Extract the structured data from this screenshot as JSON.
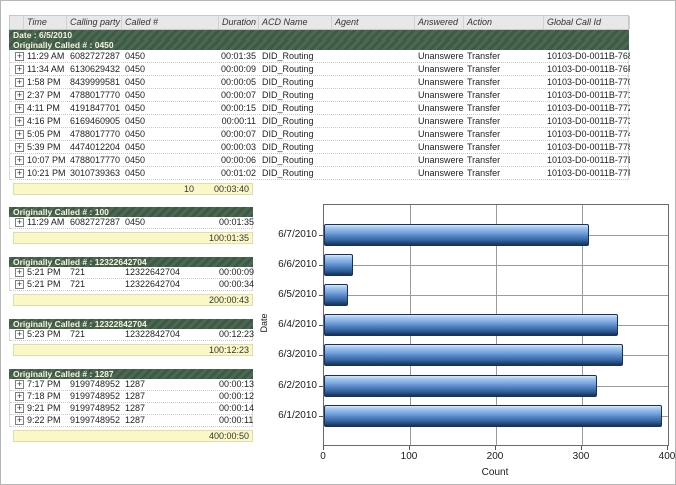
{
  "colors": {
    "group_band_green": "#44614C",
    "summary_yellow": "#FBF8C8",
    "bar_blue_light": "#A9C9EF",
    "bar_blue_dark": "#16325A",
    "header_gray": "#E8E8E8"
  },
  "table": {
    "headers": [
      "",
      "Time",
      "Calling party #",
      "Called #",
      "Duration",
      "ACD Name",
      "Agent",
      "Answered",
      "Action",
      "Global Call Id"
    ],
    "date_band": "Date : 6/5/2010",
    "expand_icon_glyph": "+",
    "groups": [
      {
        "title": "Originally Called # : 0450",
        "rows": [
          {
            "time": "11:29 AM",
            "calling": "6082727287",
            "called": "0450",
            "duration": "00:01:35",
            "acd": "DID_Routing",
            "agent": "",
            "answered": "Unanswered",
            "action": "Transfer",
            "gcid": "10103-D0-0011B-768"
          },
          {
            "time": "11:34 AM",
            "calling": "6130629432",
            "called": "0450",
            "duration": "00:00:09",
            "acd": "DID_Routing",
            "agent": "",
            "answered": "Unanswered",
            "action": "Transfer",
            "gcid": "10103-D0-0011B-76F"
          },
          {
            "time": "1:58 PM",
            "calling": "8439999581",
            "called": "0450",
            "duration": "00:00:05",
            "acd": "DID_Routing",
            "agent": "",
            "answered": "Unanswered",
            "action": "Transfer",
            "gcid": "10103-D0-0011B-770"
          },
          {
            "time": "2:37 PM",
            "calling": "4788017770",
            "called": "0450",
            "duration": "00:00:07",
            "acd": "DID_Routing",
            "agent": "",
            "answered": "Unanswered",
            "action": "Transfer",
            "gcid": "10103-D0-0011B-771"
          },
          {
            "time": "4:11 PM",
            "calling": "4191847701",
            "called": "0450",
            "duration": "00:00:15",
            "acd": "DID_Routing",
            "agent": "",
            "answered": "Unanswered",
            "action": "Transfer",
            "gcid": "10103-D0-0011B-772"
          },
          {
            "time": "4:16 PM",
            "calling": "6169460905",
            "called": "0450",
            "duration": "00:00:11",
            "acd": "DID_Routing",
            "agent": "",
            "answered": "Unanswered",
            "action": "Transfer",
            "gcid": "10103-D0-0011B-773"
          },
          {
            "time": "5:05 PM",
            "calling": "4788017770",
            "called": "0450",
            "duration": "00:00:07",
            "acd": "DID_Routing",
            "agent": "",
            "answered": "Unanswered",
            "action": "Transfer",
            "gcid": "10103-D0-0011B-774"
          },
          {
            "time": "5:39 PM",
            "calling": "4474012204",
            "called": "0450",
            "duration": "00:00:03",
            "acd": "DID_Routing",
            "agent": "",
            "answered": "Unanswered",
            "action": "Transfer",
            "gcid": "10103-D0-0011B-778"
          },
          {
            "time": "10:07 PM",
            "calling": "4788017770",
            "called": "0450",
            "duration": "00:00:06",
            "acd": "DID_Routing",
            "agent": "",
            "answered": "Unanswered",
            "action": "Transfer",
            "gcid": "10103-D0-0011B-77E"
          },
          {
            "time": "10:21 PM",
            "calling": "3010739363",
            "called": "0450",
            "duration": "00:01:02",
            "acd": "DID_Routing",
            "agent": "",
            "answered": "Unanswered",
            "action": "Transfer",
            "gcid": "10103-D0-0011B-77F"
          }
        ],
        "summary": {
          "count": "10",
          "total": "00:03:40"
        }
      },
      {
        "title": "Originally Called # : 100",
        "rows": [
          {
            "time": "11:29 AM",
            "calling": "6082727287",
            "called": "0450",
            "duration": "00:01:35"
          }
        ],
        "summary": {
          "count": "1",
          "total": "00:01:35"
        }
      },
      {
        "title": "Originally Called # : 12322642704",
        "rows": [
          {
            "time": "5:21 PM",
            "calling": "721",
            "called": "12322642704",
            "duration": "00:00:09"
          },
          {
            "time": "5:21 PM",
            "calling": "721",
            "called": "12322642704",
            "duration": "00:00:34"
          }
        ],
        "summary": {
          "count": "2",
          "total": "00:00:43"
        }
      },
      {
        "title": "Originally Called # : 12322842704",
        "rows": [
          {
            "time": "5:23 PM",
            "calling": "721",
            "called": "12322842704",
            "duration": "00:12:23"
          }
        ],
        "summary": {
          "count": "1",
          "total": "00:12:23"
        }
      },
      {
        "title": "Originally Called # : 1287",
        "rows": [
          {
            "time": "7:17 PM",
            "calling": "9199748952",
            "called": "1287",
            "duration": "00:00:13"
          },
          {
            "time": "7:18 PM",
            "calling": "9199748952",
            "called": "1287",
            "duration": "00:00:12"
          },
          {
            "time": "9:21 PM",
            "calling": "9199748952",
            "called": "1287",
            "duration": "00:00:14"
          },
          {
            "time": "9:22 PM",
            "calling": "9199748952",
            "called": "1287",
            "duration": "00:00:11"
          }
        ],
        "summary": {
          "count": "4",
          "total": "00:00:50"
        }
      }
    ]
  },
  "chart_data": {
    "type": "bar",
    "orientation": "horizontal",
    "categories": [
      "6/7/2010",
      "6/6/2010",
      "6/5/2010",
      "6/4/2010",
      "6/3/2010",
      "6/2/2010",
      "6/1/2010"
    ],
    "values": [
      308,
      34,
      28,
      342,
      348,
      318,
      393
    ],
    "title": "",
    "xlabel": "Count",
    "ylabel": "Date",
    "xlim": [
      0,
      400
    ],
    "xticks": [
      0,
      100,
      200,
      300,
      400
    ],
    "grid": true,
    "legend": "none"
  }
}
